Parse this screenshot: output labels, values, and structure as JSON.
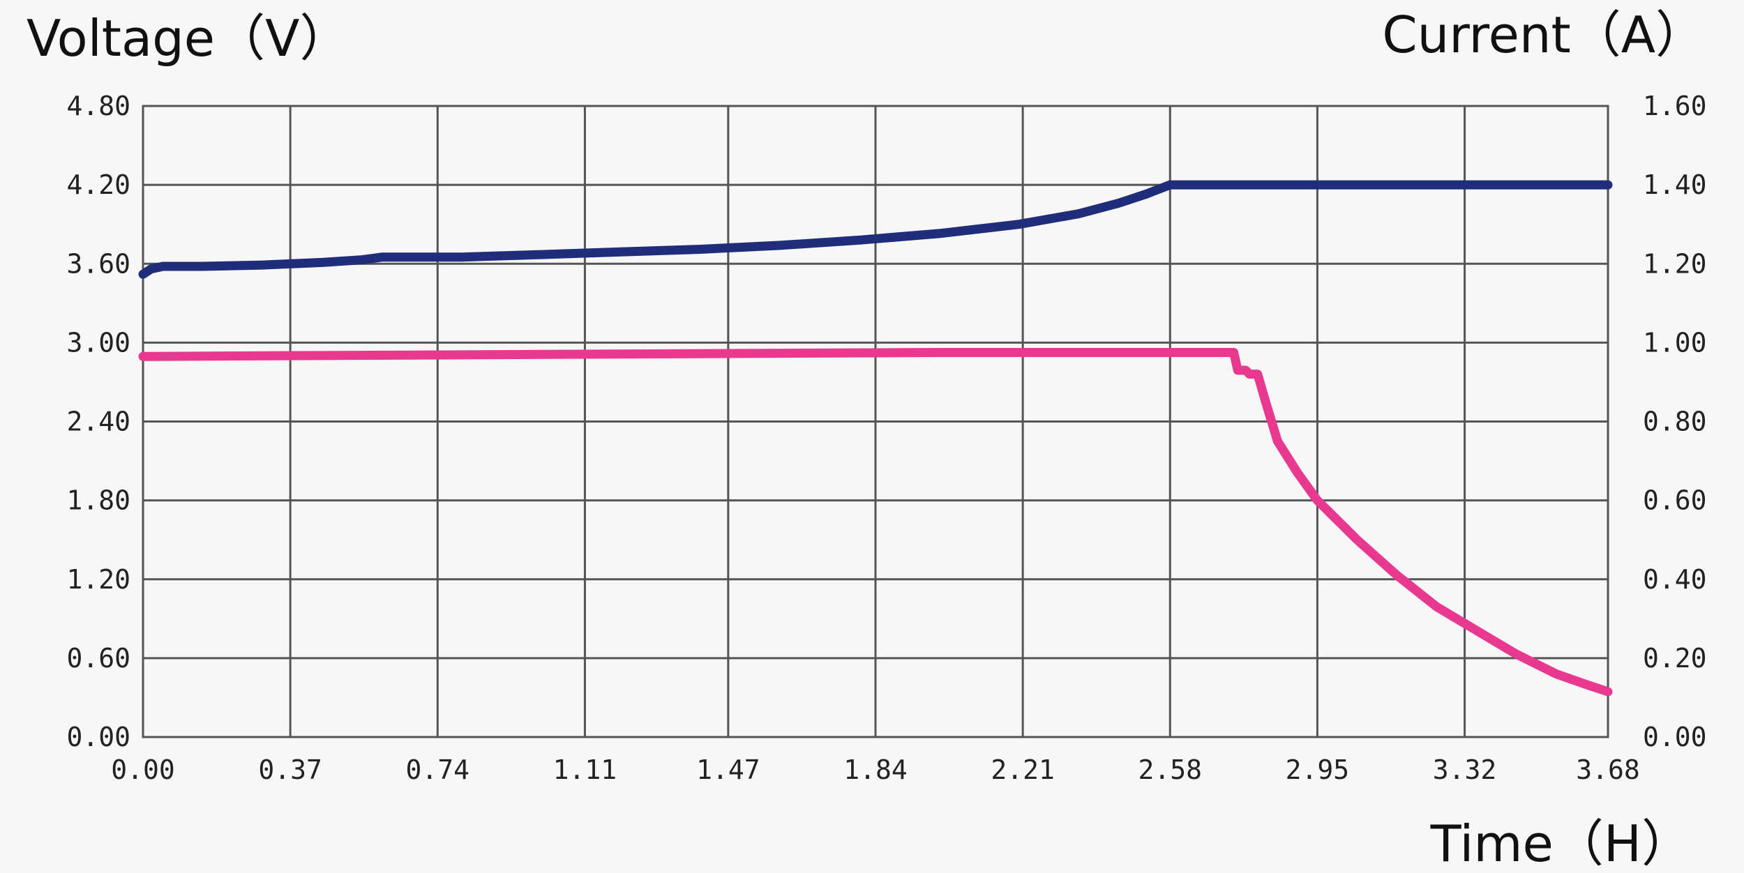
{
  "chart_data": {
    "type": "line",
    "title": "",
    "ylabel_left": "Voltage（V）",
    "ylabel_right": "Current（A）",
    "xlabel": "Time（H）",
    "x_ticks": [
      "0.00",
      "0.37",
      "0.74",
      "1.11",
      "1.47",
      "1.84",
      "2.21",
      "2.58",
      "2.95",
      "3.32",
      "3.68"
    ],
    "y_left_ticks": [
      "0.00",
      "0.60",
      "1.20",
      "1.80",
      "2.40",
      "3.00",
      "3.60",
      "4.20",
      "4.80"
    ],
    "y_right_ticks": [
      "0.00",
      "0.20",
      "0.40",
      "0.60",
      "0.80",
      "1.00",
      "1.20",
      "1.40",
      "1.60"
    ],
    "xlim": [
      0,
      3.68
    ],
    "ylim_left": [
      0,
      4.8
    ],
    "ylim_right": [
      0,
      1.6
    ],
    "grid": true,
    "series": [
      {
        "axis": "left",
        "color": "#1f2d7a",
        "points": [
          [
            0.0,
            3.52
          ],
          [
            0.02,
            3.56
          ],
          [
            0.05,
            3.58
          ],
          [
            0.15,
            3.58
          ],
          [
            0.3,
            3.59
          ],
          [
            0.45,
            3.61
          ],
          [
            0.55,
            3.63
          ],
          [
            0.6,
            3.65
          ],
          [
            0.8,
            3.65
          ],
          [
            1.0,
            3.67
          ],
          [
            1.2,
            3.69
          ],
          [
            1.4,
            3.71
          ],
          [
            1.6,
            3.74
          ],
          [
            1.8,
            3.78
          ],
          [
            2.0,
            3.83
          ],
          [
            2.2,
            3.9
          ],
          [
            2.35,
            3.98
          ],
          [
            2.45,
            4.06
          ],
          [
            2.52,
            4.13
          ],
          [
            2.58,
            4.2
          ],
          [
            3.68,
            4.2
          ]
        ]
      },
      {
        "axis": "right",
        "color": "#e8388f",
        "points": [
          [
            0.0,
            0.965
          ],
          [
            1.0,
            0.97
          ],
          [
            2.0,
            0.975
          ],
          [
            2.74,
            0.975
          ],
          [
            2.75,
            0.93
          ],
          [
            2.77,
            0.93
          ],
          [
            2.78,
            0.92
          ],
          [
            2.8,
            0.92
          ],
          [
            2.82,
            0.85
          ],
          [
            2.85,
            0.75
          ],
          [
            2.9,
            0.67
          ],
          [
            2.95,
            0.6
          ],
          [
            3.05,
            0.5
          ],
          [
            3.15,
            0.41
          ],
          [
            3.25,
            0.33
          ],
          [
            3.35,
            0.27
          ],
          [
            3.45,
            0.21
          ],
          [
            3.55,
            0.16
          ],
          [
            3.62,
            0.135
          ],
          [
            3.68,
            0.115
          ]
        ]
      }
    ]
  }
}
